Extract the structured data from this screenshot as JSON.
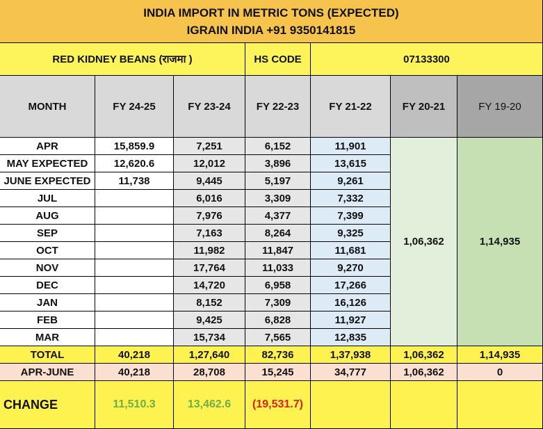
{
  "header": {
    "title": "INDIA IMPORT IN METRIC TONS (EXPECTED)",
    "subtitle": "IGRAIN INDIA +91 9350141815"
  },
  "product": {
    "name": "RED KIDNEY BEANS  (राजमा )",
    "hs_label": "HS CODE",
    "hs_code": "07133300"
  },
  "table": {
    "columns": [
      "MONTH",
      "FY 24-25",
      "FY 23-24",
      "FY 22-23",
      "FY 21-22",
      "FY 20-21",
      "FY 19-20"
    ],
    "rows": [
      [
        "APR",
        "15,859.9",
        "7,251",
        "6,152",
        "11,901"
      ],
      [
        "MAY EXPECTED",
        "12,620.6",
        "12,012",
        "3,896",
        "13,615"
      ],
      [
        "JUNE EXPECTED",
        "11,738",
        "9,445",
        "5,197",
        "9,261"
      ],
      [
        "JUL",
        null,
        "6,016",
        "3,309",
        "7,332"
      ],
      [
        "AUG",
        null,
        "7,976",
        "4,377",
        "7,399"
      ],
      [
        "SEP",
        null,
        "7,163",
        "8,264",
        "9,325"
      ],
      [
        "OCT",
        null,
        "11,982",
        "11,847",
        "11,681"
      ],
      [
        "NOV",
        null,
        "17,764",
        "11,033",
        "9,270"
      ],
      [
        "DEC",
        null,
        "14,720",
        "6,958",
        "17,266"
      ],
      [
        "JAN",
        null,
        "8,152",
        "7,309",
        "16,126"
      ],
      [
        "FEB",
        null,
        "9,425",
        "6,828",
        "11,927"
      ],
      [
        "MAR",
        null,
        "15,734",
        "7,565",
        "12,835"
      ]
    ],
    "annual": [
      "1,06,362",
      "1,14,935"
    ],
    "total": [
      "TOTAL",
      "40,218",
      "1,27,640",
      "82,736",
      "1,37,938",
      "1,06,362",
      "1,14,935"
    ],
    "apr_june": [
      "APR-JUNE",
      "40,218",
      "28,708",
      "15,245",
      "34,777",
      "1,06,362",
      "0"
    ],
    "change": [
      "CHANGE",
      "11,510.3",
      "13,462.6",
      "(19,531.7)"
    ]
  }
}
